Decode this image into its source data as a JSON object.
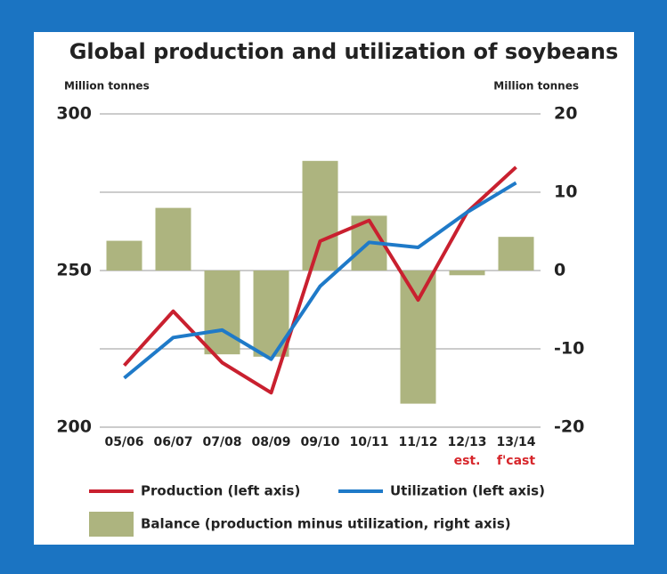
{
  "chart_data": {
    "type": "combo",
    "title": "Global production and utilization of soybeans",
    "ylabel": "Million tonnes",
    "y2label": "Million tonnes",
    "categories": [
      "05/06",
      "06/07",
      "07/08",
      "08/09",
      "09/10",
      "10/11",
      "11/12",
      "12/13",
      "13/14"
    ],
    "annotations": [
      {
        "text": "est.",
        "category": "12/13"
      },
      {
        "text": "f'cast",
        "category": "13/14"
      }
    ],
    "ylim": [
      200,
      300
    ],
    "yticks": [
      200,
      250,
      300
    ],
    "y2lim": [
      -20,
      20
    ],
    "y2ticks": [
      -20,
      -10,
      0,
      10,
      20
    ],
    "grid": true,
    "series": [
      {
        "name": "Balance (production minus utilization, right axis)",
        "type": "bar",
        "axis": "y2",
        "color": "#adb47f",
        "values": [
          3.8,
          8,
          -10.7,
          -11,
          14,
          7,
          -17,
          -0.6,
          4.3
        ]
      },
      {
        "name": "Production (left axis)",
        "type": "line",
        "color": "#c9202f",
        "values": [
          219.7,
          237,
          220.6,
          211,
          259.4,
          266,
          240.6,
          268.6,
          283
        ]
      },
      {
        "name": "Utilization (left axis)",
        "type": "line",
        "color": "#1f7ac8",
        "values": [
          215.7,
          228.6,
          231,
          221.7,
          245,
          259,
          257.4,
          268.6,
          278
        ]
      }
    ]
  }
}
